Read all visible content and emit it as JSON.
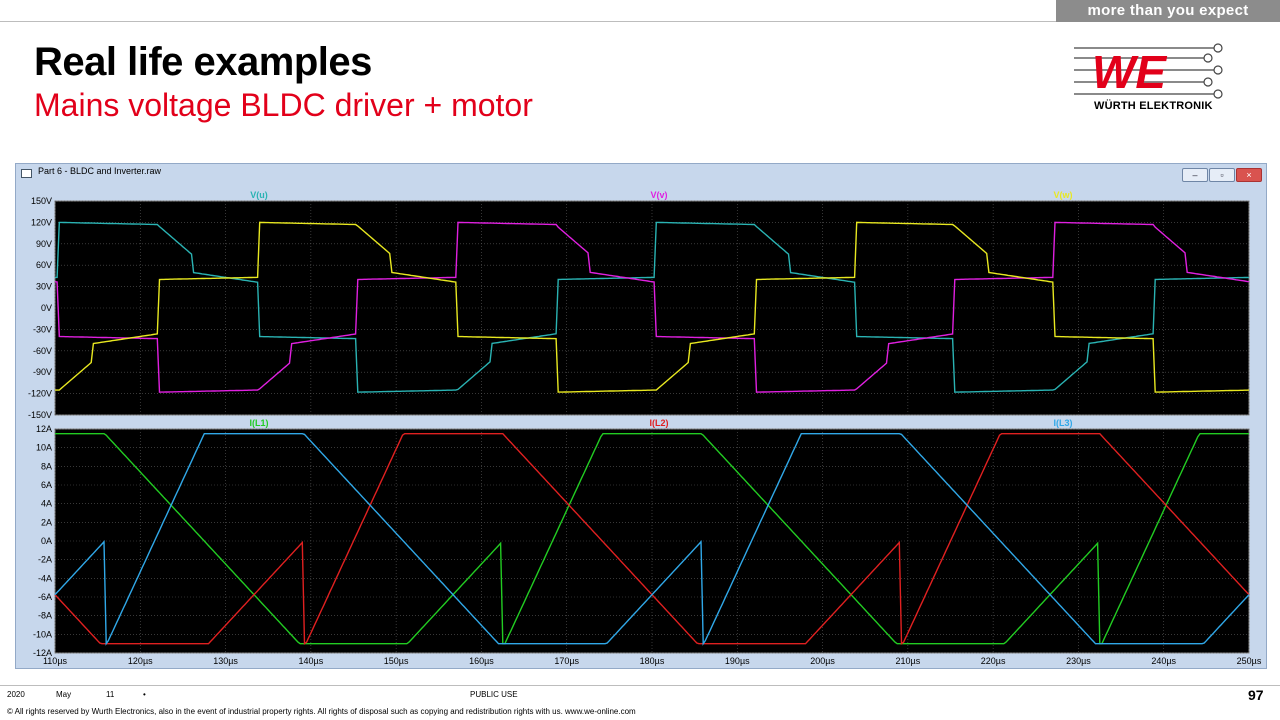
{
  "header": {
    "tagline": "more than you expect",
    "title": "Real life examples",
    "subtitle": "Mains voltage BLDC driver + motor"
  },
  "logo": {
    "text": "WÜRTH ELEKTRONIK",
    "mark": "WE"
  },
  "window": {
    "title": "Part 6 - BLDC and Inverter.raw",
    "buttons": [
      "minimize",
      "restore",
      "close"
    ]
  },
  "colors": {
    "accent": "#e2001a",
    "plot_bg": "#000000",
    "grid": "#5a5a5a",
    "frame": "#c7d7ec"
  },
  "chart_data": [
    {
      "type": "line",
      "x_unit": "µs",
      "xlim": [
        110,
        250
      ],
      "ylim": [
        -150,
        150
      ],
      "y_ticks": [
        "150V",
        "120V",
        "90V",
        "60V",
        "30V",
        "0V",
        "-30V",
        "-60V",
        "-90V",
        "-120V",
        "-150V"
      ],
      "grid": true,
      "series": [
        {
          "name": "V(u)",
          "color": "#2ab3b3",
          "phase_offset": 0
        },
        {
          "name": "V(v)",
          "color": "#e020e0",
          "phase_offset": 120
        },
        {
          "name": "V(w)",
          "color": "#e8e820",
          "phase_offset": 240
        }
      ],
      "waveform": "six-step, levels ±120V / ±40V, period 70µs"
    },
    {
      "type": "line",
      "x_unit": "µs",
      "xlim": [
        110,
        250
      ],
      "ylim": [
        -12,
        12
      ],
      "y_ticks": [
        "12A",
        "10A",
        "8A",
        "6A",
        "4A",
        "2A",
        "0A",
        "-2A",
        "-4A",
        "-6A",
        "-8A",
        "-10A",
        "-12A"
      ],
      "x_ticks": [
        "110µs",
        "120µs",
        "130µs",
        "140µs",
        "150µs",
        "160µs",
        "170µs",
        "180µs",
        "190µs",
        "200µs",
        "210µs",
        "220µs",
        "230µs",
        "240µs",
        "250µs"
      ],
      "grid": true,
      "series": [
        {
          "name": "I(L1)",
          "color": "#22cc22",
          "phase_offset": 0
        },
        {
          "name": "I(L2)",
          "color": "#e02020",
          "phase_offset": 120
        },
        {
          "name": "I(L3)",
          "color": "#30a8e8",
          "phase_offset": 240
        }
      ],
      "waveform": "trapezoidal, amplitude 11.5A, period 70µs"
    }
  ],
  "footer": {
    "year": "2020",
    "month": "May",
    "day": "11",
    "dot": "•",
    "classification": "PUBLIC USE",
    "page": "97",
    "copyright": "© All rights reserved by Wurth Electronics, also in the event of industrial property rights. All rights of disposal such as copying and redistribution rights with us. www.we-online.com"
  }
}
